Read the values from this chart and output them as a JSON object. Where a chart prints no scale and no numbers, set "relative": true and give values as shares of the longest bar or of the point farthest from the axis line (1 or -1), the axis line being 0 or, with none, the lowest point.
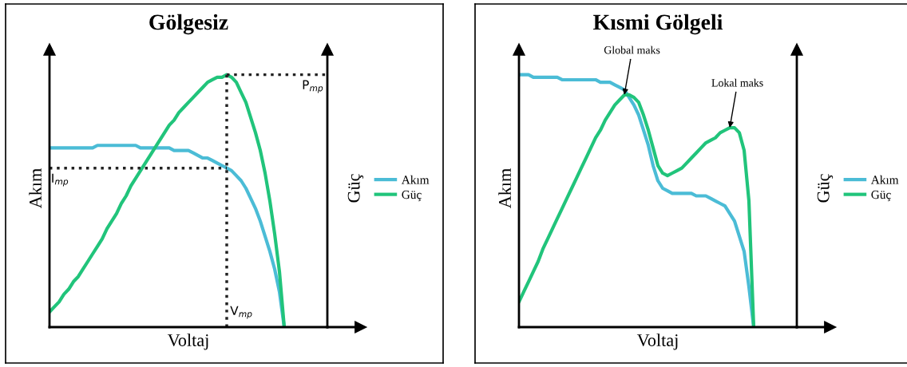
{
  "chart_data": [
    {
      "type": "line",
      "title": "Gölgesiz",
      "xlabel": "Voltaj",
      "ylabel": "Akım",
      "y2label": "Güç",
      "relative": true,
      "legend": "right",
      "tick_labels": false,
      "categories": [
        null,
        null,
        null,
        null,
        null,
        null,
        null,
        null,
        null,
        null,
        null,
        null,
        null,
        null,
        null,
        null,
        null,
        null,
        null,
        null,
        null,
        null,
        null,
        null,
        null,
        null,
        null,
        null,
        null,
        null,
        null,
        null,
        null,
        null,
        null,
        null,
        null,
        null,
        null,
        null,
        null,
        null,
        null,
        null,
        null,
        null,
        null,
        null,
        null,
        null,
        null,
        null,
        null,
        null,
        null,
        null,
        null,
        null,
        null
      ],
      "series": [
        {
          "name": "Akım",
          "color": "#4bbcd6",
          "values": [
            0.71,
            0.71,
            0.71,
            0.71,
            0.71,
            0.71,
            0.71,
            0.71,
            0.71,
            0.71,
            0.72,
            0.72,
            0.72,
            0.72,
            0.72,
            0.72,
            0.72,
            0.72,
            0.72,
            0.71,
            0.71,
            0.71,
            0.71,
            0.71,
            0.71,
            0.71,
            0.7,
            0.7,
            0.7,
            0.7,
            0.69,
            0.68,
            0.67,
            0.67,
            0.66,
            0.65,
            0.64,
            0.63,
            0.62,
            0.6,
            0.58,
            0.55,
            0.51,
            0.47,
            0.42,
            0.36,
            0.3,
            0.23,
            0.14,
            0.0,
            null,
            null,
            null,
            null,
            null,
            null,
            null,
            null,
            null
          ]
        },
        {
          "name": "Güç",
          "color": "#21c47b",
          "values": [
            0.06,
            0.08,
            0.1,
            0.13,
            0.15,
            0.18,
            0.2,
            0.23,
            0.26,
            0.29,
            0.32,
            0.35,
            0.39,
            0.42,
            0.45,
            0.49,
            0.52,
            0.56,
            0.59,
            0.62,
            0.65,
            0.68,
            0.71,
            0.74,
            0.77,
            0.8,
            0.82,
            0.85,
            0.87,
            0.89,
            0.91,
            0.93,
            0.95,
            0.97,
            0.98,
            0.99,
            0.99,
            1.0,
            0.99,
            0.97,
            0.93,
            0.89,
            0.83,
            0.77,
            0.7,
            0.61,
            0.5,
            0.37,
            0.22,
            0.0,
            null,
            null,
            null,
            null,
            null,
            null,
            null,
            null,
            null
          ]
        }
      ],
      "ref_lines": [
        {
          "axis": "y",
          "value": 0.63,
          "label": "I$_{mp}$",
          "line_style": "dotted",
          "color": "#222222"
        },
        {
          "axis": "y",
          "value": 1.0,
          "label": "P$_{mp}$",
          "line_style": "dotted",
          "color": "#222222"
        }
      ],
      "annotations": [
        "V$_{mp}$"
      ]
    },
    {
      "type": "line",
      "title": "Kısmi Gölgeli",
      "xlabel": "Voltaj",
      "ylabel": "Akım",
      "y2label": "Güç",
      "relative": true,
      "legend": "right",
      "tick_labels": false,
      "categories": [
        null,
        null,
        null,
        null,
        null,
        null,
        null,
        null,
        null,
        null,
        null,
        null,
        null,
        null,
        null,
        null,
        null,
        null,
        null,
        null,
        null,
        null,
        null,
        null,
        null,
        null,
        null,
        null,
        null,
        null,
        null,
        null,
        null,
        null,
        null,
        null,
        null,
        null,
        null,
        null,
        null,
        null,
        null,
        null,
        null,
        null,
        null,
        null,
        null,
        null,
        null,
        null,
        null,
        null,
        null,
        null,
        null,
        null,
        null
      ],
      "series": [
        {
          "name": "Akım",
          "color": "#4bbcd6",
          "values": [
            1.0,
            1.0,
            1.0,
            0.99,
            0.99,
            0.99,
            0.99,
            0.99,
            0.99,
            0.98,
            0.98,
            0.98,
            0.98,
            0.98,
            0.98,
            0.98,
            0.98,
            0.97,
            0.97,
            0.97,
            0.96,
            0.95,
            0.94,
            0.91,
            0.88,
            0.84,
            0.78,
            0.72,
            0.64,
            0.58,
            0.55,
            0.54,
            0.53,
            0.53,
            0.53,
            0.53,
            0.53,
            0.52,
            0.52,
            0.52,
            0.51,
            0.5,
            0.49,
            0.48,
            0.45,
            0.42,
            0.36,
            0.3,
            0.16,
            0.0,
            null,
            null,
            null,
            null,
            null,
            null,
            null,
            null,
            null
          ]
        },
        {
          "name": "Güç",
          "color": "#21c47b",
          "values": [
            0.1,
            0.14,
            0.18,
            0.22,
            0.26,
            0.31,
            0.35,
            0.39,
            0.43,
            0.47,
            0.51,
            0.55,
            0.59,
            0.63,
            0.67,
            0.71,
            0.75,
            0.78,
            0.82,
            0.85,
            0.88,
            0.9,
            0.92,
            0.92,
            0.91,
            0.89,
            0.84,
            0.78,
            0.71,
            0.64,
            0.61,
            0.6,
            0.61,
            0.62,
            0.63,
            0.65,
            0.67,
            0.69,
            0.71,
            0.73,
            0.74,
            0.75,
            0.77,
            0.78,
            0.79,
            0.79,
            0.77,
            0.7,
            0.5,
            0.0,
            null,
            null,
            null,
            null,
            null,
            null,
            null,
            null,
            null
          ]
        }
      ],
      "annotations": [
        "Global maks",
        "Lokal maks"
      ]
    }
  ]
}
